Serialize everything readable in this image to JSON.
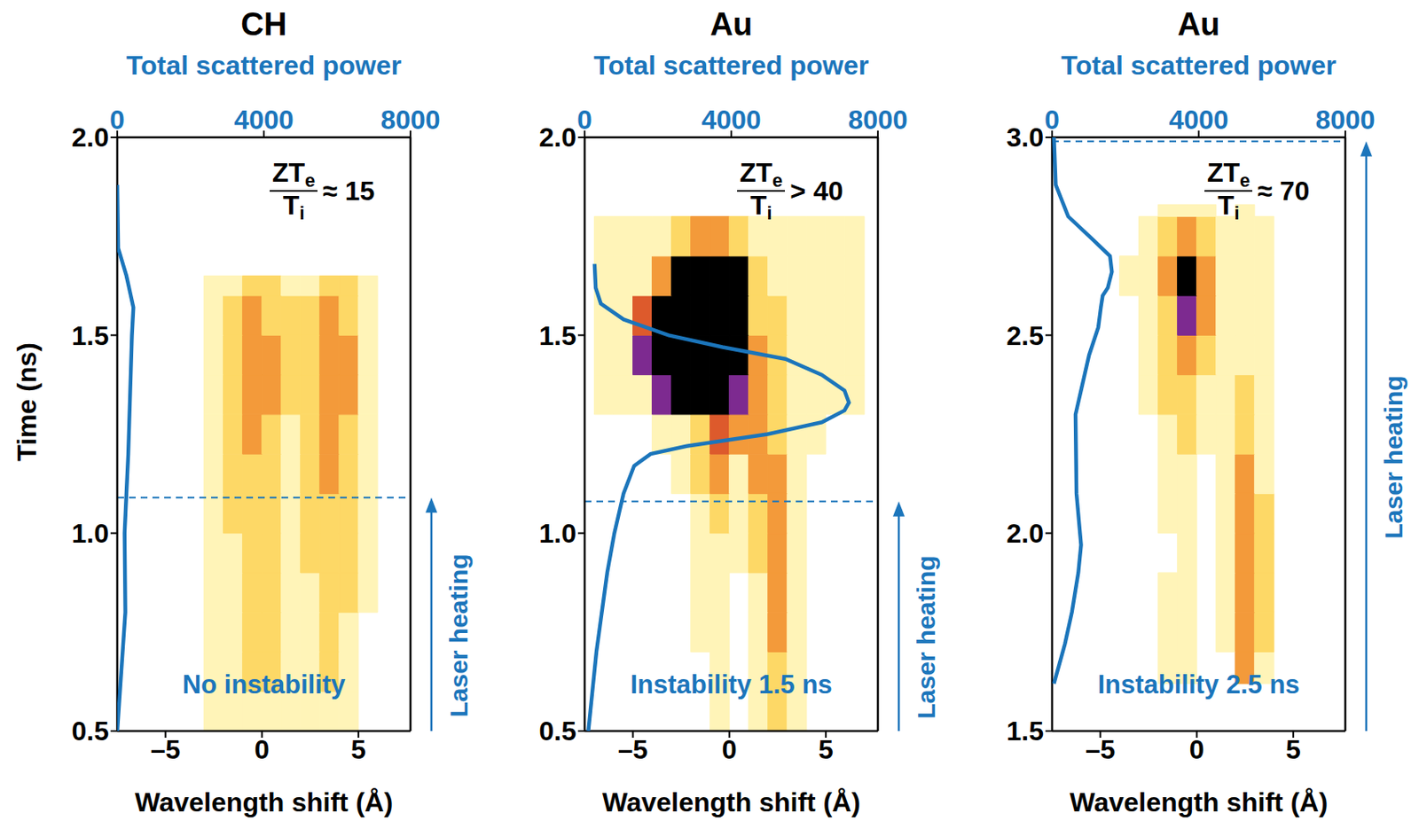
{
  "chart_data": [
    {
      "type": "heatmap",
      "title": "CH",
      "x_label": "Wavelength shift (Å)",
      "x2_label": "Total scattered power",
      "y_label": "Time (ns)",
      "xlim": [
        -7.5,
        7.7
      ],
      "xticks": [
        {
          "value": -5,
          "label": "–5"
        },
        0,
        5
      ],
      "x2lim": [
        0,
        8000
      ],
      "x2ticks": [
        0,
        4000,
        8000
      ],
      "ylim": [
        0.5,
        2.0
      ],
      "yticks": [
        0.5,
        {
          "value": 1,
          "label": "1.0"
        },
        1.5,
        {
          "value": 2,
          "label": "2.0"
        }
      ],
      "color_scale": {
        "levels": [
          1,
          2,
          3,
          4,
          5,
          6
        ],
        "colors": [
          "#fff4b8",
          "#fdd866",
          "#f39a3a",
          "#dd5a2c",
          "#7d2a90",
          "#000000"
        ]
      },
      "heatmap": {
        "x_bins": [
          -4,
          -3,
          -2,
          -1,
          0,
          1,
          2,
          3,
          4,
          5,
          6
        ],
        "y_bins": [
          0.5,
          0.6,
          0.7,
          0.8,
          0.9,
          1.0,
          1.1,
          1.2,
          1.3,
          1.4,
          1.5,
          1.6,
          1.65
        ],
        "cells": [
          [
            0,
            1,
            1,
            1,
            1,
            1,
            1,
            1,
            1,
            0
          ],
          [
            0,
            1,
            1,
            2,
            2,
            1,
            1,
            2,
            1,
            0
          ],
          [
            0,
            1,
            1,
            2,
            2,
            1,
            1,
            2,
            1,
            0
          ],
          [
            0,
            1,
            1,
            2,
            2,
            1,
            1,
            2,
            2,
            1
          ],
          [
            0,
            1,
            1,
            2,
            2,
            1,
            2,
            2,
            2,
            1
          ],
          [
            0,
            1,
            2,
            2,
            2,
            1,
            2,
            2,
            2,
            1
          ],
          [
            0,
            1,
            2,
            2,
            2,
            1,
            2,
            3,
            2,
            1
          ],
          [
            0,
            1,
            2,
            3,
            2,
            1,
            2,
            3,
            2,
            1
          ],
          [
            0,
            1,
            2,
            3,
            3,
            2,
            2,
            3,
            3,
            1
          ],
          [
            0,
            1,
            2,
            3,
            3,
            2,
            2,
            3,
            3,
            1
          ],
          [
            0,
            1,
            2,
            3,
            2,
            2,
            2,
            3,
            2,
            1
          ],
          [
            0,
            1,
            1,
            2,
            2,
            1,
            1,
            2,
            2,
            1
          ]
        ]
      },
      "series": [
        {
          "type": "line",
          "color": "#1b75bb",
          "axis": "x2",
          "time": [
            0.5,
            0.8,
            1.0,
            1.2,
            1.5,
            1.57,
            1.65,
            1.72,
            1.88
          ],
          "power": [
            0,
            220,
            200,
            300,
            400,
            440,
            250,
            25,
            0
          ]
        }
      ],
      "laser_heating_start": 1.09,
      "ratio_label": {
        "numerator": "ZT",
        "numerator_subscript": "e",
        "denominator": "T",
        "denominator_subscript": "i",
        "relation": "≈ 15"
      },
      "status_label": "No instability",
      "heating_label": "Laser heating"
    },
    {
      "type": "heatmap",
      "title": "Au",
      "x_label": "Wavelength shift (Å)",
      "x2_label": "Total scattered power",
      "xlim": [
        -7.5,
        7.7
      ],
      "xticks": [
        {
          "value": -5,
          "label": "–5"
        },
        0,
        5
      ],
      "x2lim": [
        0,
        8000
      ],
      "x2ticks": [
        0,
        4000,
        8000
      ],
      "ylim": [
        0.5,
        2.0
      ],
      "yticks": [
        0.5,
        {
          "value": 1,
          "label": "1.0"
        },
        1.5,
        {
          "value": 2,
          "label": "2.0"
        }
      ],
      "color_scale": {
        "levels": [
          1,
          2,
          3,
          4,
          5,
          6
        ],
        "colors": [
          "#fff4b8",
          "#fdd866",
          "#f39a3a",
          "#dd5a2c",
          "#7d2a90",
          "#000000"
        ]
      },
      "heatmap": {
        "x_bins": [
          -7,
          -6,
          -5,
          -4,
          -3,
          -2,
          -1,
          0,
          1,
          2,
          3,
          4,
          5,
          6,
          7
        ],
        "y_bins": [
          0.5,
          0.6,
          0.7,
          0.8,
          0.9,
          1.0,
          1.1,
          1.2,
          1.3,
          1.4,
          1.5,
          1.6,
          1.7,
          1.8
        ],
        "cells": [
          [
            0,
            0,
            0,
            0,
            0,
            0,
            1,
            0,
            1,
            2,
            1,
            0,
            0,
            0
          ],
          [
            0,
            0,
            0,
            0,
            0,
            0,
            1,
            0,
            1,
            2,
            1,
            0,
            0,
            0
          ],
          [
            0,
            0,
            0,
            0,
            0,
            1,
            1,
            0,
            1,
            3,
            1,
            0,
            0,
            0
          ],
          [
            0,
            0,
            0,
            0,
            0,
            1,
            1,
            0,
            1,
            3,
            1,
            0,
            0,
            0
          ],
          [
            0,
            0,
            0,
            0,
            0,
            1,
            1,
            1,
            2,
            3,
            1,
            0,
            0,
            0
          ],
          [
            0,
            0,
            0,
            0,
            0,
            1,
            2,
            1,
            2,
            3,
            1,
            0,
            0,
            0
          ],
          [
            0,
            0,
            0,
            0,
            1,
            2,
            3,
            1,
            3,
            3,
            1,
            0,
            0,
            0
          ],
          [
            0,
            0,
            0,
            1,
            1,
            2,
            4,
            3,
            3,
            2,
            1,
            1,
            0,
            0
          ],
          [
            1,
            1,
            1,
            5,
            6,
            6,
            6,
            5,
            3,
            2,
            1,
            1,
            1,
            1
          ],
          [
            1,
            1,
            5,
            6,
            6,
            6,
            6,
            6,
            3,
            2,
            1,
            1,
            1,
            1
          ],
          [
            1,
            1,
            4,
            6,
            6,
            6,
            6,
            6,
            2,
            2,
            1,
            1,
            1,
            1
          ],
          [
            1,
            1,
            1,
            3,
            6,
            6,
            6,
            6,
            2,
            1,
            1,
            1,
            1,
            1
          ],
          [
            1,
            1,
            1,
            1,
            2,
            3,
            3,
            2,
            1,
            1,
            1,
            1,
            1,
            1
          ]
        ]
      },
      "series": [
        {
          "type": "line",
          "color": "#1b75bb",
          "axis": "x2",
          "time": [
            0.5,
            0.7,
            0.9,
            1.0,
            1.1,
            1.17,
            1.2,
            1.22,
            1.25,
            1.28,
            1.31,
            1.33,
            1.36,
            1.4,
            1.44,
            1.47,
            1.5,
            1.54,
            1.58,
            1.62,
            1.68
          ],
          "power": [
            100,
            320,
            615,
            810,
            1060,
            1350,
            1800,
            2780,
            4990,
            6470,
            7090,
            7210,
            7090,
            6470,
            5480,
            3760,
            2290,
            1060,
            440,
            300,
            270
          ]
        }
      ],
      "laser_heating_start": 1.08,
      "ratio_label": {
        "numerator": "ZT",
        "numerator_subscript": "e",
        "denominator": "T",
        "denominator_subscript": "i",
        "relation": "> 40"
      },
      "status_label": "Instability 1.5 ns",
      "heating_label": "Laser heating"
    },
    {
      "type": "heatmap",
      "title": "Au",
      "x_label": "Wavelength shift (Å)",
      "x2_label": "Total scattered power",
      "xlim": [
        -7.5,
        7.7
      ],
      "xticks": [
        {
          "value": -5,
          "label": "–5"
        },
        0,
        5
      ],
      "x2lim": [
        0,
        8000
      ],
      "x2ticks": [
        0,
        4000,
        8000
      ],
      "ylim": [
        1.5,
        3.0
      ],
      "yticks": [
        1.5,
        {
          "value": 2,
          "label": "2.0"
        },
        2.5,
        {
          "value": 3,
          "label": "3.0"
        }
      ],
      "color_scale": {
        "levels": [
          1,
          2,
          3,
          4,
          5,
          6
        ],
        "colors": [
          "#fff4b8",
          "#fdd866",
          "#f39a3a",
          "#dd5a2c",
          "#7d2a90",
          "#000000"
        ]
      },
      "heatmap": {
        "x_bins": [
          -4,
          -3,
          -2,
          -1,
          0,
          1,
          2,
          3,
          4,
          5
        ],
        "y_bins": [
          1.62,
          1.7,
          1.8,
          1.9,
          2.0,
          2.1,
          2.2,
          2.3,
          2.4,
          2.5,
          2.6,
          2.7,
          2.8,
          2.83
        ],
        "cells": [
          [
            0,
            0,
            1,
            1,
            0,
            0,
            3,
            1,
            0
          ],
          [
            0,
            0,
            1,
            1,
            0,
            1,
            3,
            2,
            0
          ],
          [
            0,
            0,
            1,
            1,
            0,
            1,
            3,
            2,
            0
          ],
          [
            0,
            0,
            0,
            1,
            0,
            1,
            3,
            2,
            0
          ],
          [
            0,
            0,
            1,
            1,
            0,
            1,
            3,
            2,
            0
          ],
          [
            0,
            0,
            1,
            1,
            0,
            1,
            3,
            1,
            0
          ],
          [
            0,
            0,
            1,
            2,
            1,
            1,
            2,
            1,
            0
          ],
          [
            0,
            1,
            2,
            2,
            1,
            1,
            2,
            1,
            0
          ],
          [
            0,
            1,
            2,
            3,
            2,
            1,
            1,
            1,
            0
          ],
          [
            0,
            1,
            2,
            5,
            3,
            1,
            1,
            1,
            0
          ],
          [
            1,
            1,
            3,
            6,
            3,
            1,
            1,
            1,
            0
          ],
          [
            0,
            1,
            2,
            3,
            2,
            1,
            1,
            1,
            0
          ],
          [
            0,
            0,
            1,
            1,
            1,
            0,
            1,
            0,
            0
          ]
        ]
      },
      "series": [
        {
          "type": "line",
          "color": "#1b75bb",
          "axis": "x2",
          "time": [
            1.62,
            1.72,
            1.8,
            1.9,
            1.97,
            2.1,
            2.3,
            2.45,
            2.52,
            2.57,
            2.6,
            2.62,
            2.66,
            2.7,
            2.74,
            2.8,
            2.88,
            3.0
          ],
          "power": [
            50,
            350,
            540,
            715,
            790,
            665,
            640,
            1010,
            1260,
            1330,
            1380,
            1520,
            1630,
            1580,
            1130,
            440,
            100,
            50
          ]
        }
      ],
      "laser_heating_start": 2.99,
      "ratio_label": {
        "numerator": "ZT",
        "numerator_subscript": "e",
        "denominator": "T",
        "denominator_subscript": "i",
        "relation": "≈ 70"
      },
      "status_label": "Instability 2.5 ns",
      "heating_label": "Laser heating"
    }
  ]
}
